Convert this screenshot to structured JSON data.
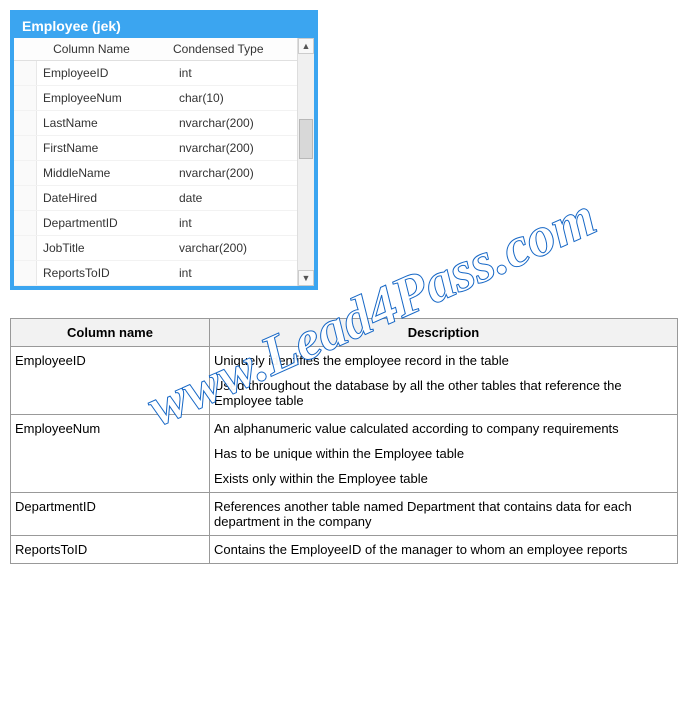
{
  "db_window": {
    "title": "Employee (jek)",
    "headers": {
      "col1": "Column Name",
      "col2": "Condensed Type"
    },
    "rows": [
      {
        "name": "EmployeeID",
        "type": "int"
      },
      {
        "name": "EmployeeNum",
        "type": "char(10)"
      },
      {
        "name": "LastName",
        "type": "nvarchar(200)"
      },
      {
        "name": "FirstName",
        "type": "nvarchar(200)"
      },
      {
        "name": "MiddleName",
        "type": "nvarchar(200)"
      },
      {
        "name": "DateHired",
        "type": "date"
      },
      {
        "name": "DepartmentID",
        "type": "int"
      },
      {
        "name": "JobTitle",
        "type": "varchar(200)"
      },
      {
        "name": "ReportsToID",
        "type": "int"
      }
    ],
    "scroll": {
      "up": "▲",
      "down": "▼"
    }
  },
  "desc_table": {
    "headers": {
      "col": "Column name",
      "desc": "Description"
    },
    "rows": [
      {
        "col": "EmployeeID",
        "lines": [
          "Uniquely identifies the employee record in the table",
          "Used throughout the database by all the other tables that reference the Employee table"
        ]
      },
      {
        "col": "EmployeeNum",
        "lines": [
          "An alphanumeric value calculated according to company requirements",
          "Has to be unique within the Employee table",
          "Exists only within the Employee table"
        ]
      },
      {
        "col": "DepartmentID",
        "lines": [
          "References another table named Department that contains data for each department in the company"
        ]
      },
      {
        "col": "ReportsToID",
        "lines": [
          "Contains the EmployeeID of the manager to whom an employee reports"
        ]
      }
    ]
  },
  "watermark": "www.Lead4Pass.com"
}
